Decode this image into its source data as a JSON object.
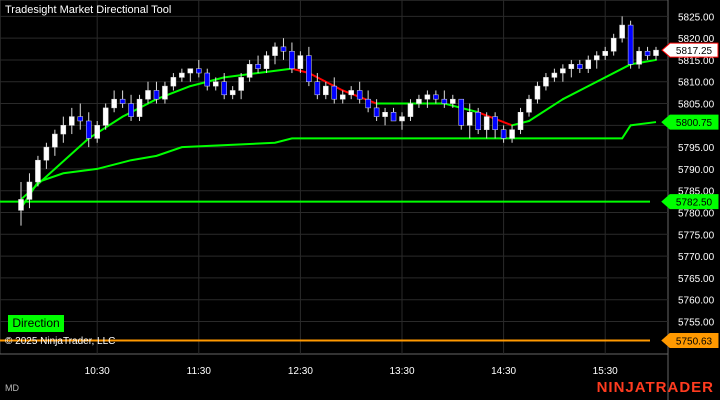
{
  "title": "Tradesight Market Directional Tool",
  "copyright": "© 2025 NinjaTrader, LLC",
  "workspace_tag": "MD",
  "brand": "NINJATRADER",
  "direction_label": "Direction",
  "colors": {
    "background": "#000000",
    "grid": "#2a2a2a",
    "bull_candle": "#ffffff",
    "bear_candle": "#0000ff",
    "trend_up": "#00ff00",
    "trend_down": "#ff0000",
    "support": "#00ff00",
    "lower_line": "#ff9900",
    "price_marker_bg": "#ffffff"
  },
  "chart_data": {
    "type": "candlestick",
    "y_range": [
      5748,
      5826
    ],
    "y_ticks": [
      "5825.00",
      "5820.00",
      "5815.00",
      "5810.00",
      "5805.00",
      "5800.00",
      "5795.00",
      "5790.00",
      "5785.00",
      "5780.00",
      "5775.00",
      "5770.00",
      "5765.00",
      "5760.00",
      "5755.00"
    ],
    "x_ticks": [
      "10:30",
      "11:30",
      "12:30",
      "13:30",
      "14:30",
      "15:30"
    ],
    "price_markers": [
      {
        "label": "5817.25",
        "value": 5817.25,
        "kind": "last"
      },
      {
        "label": "5800.75",
        "value": 5800.75,
        "kind": "green"
      },
      {
        "label": "5782.50",
        "value": 5782.5,
        "kind": "green"
      },
      {
        "label": "5750.63",
        "value": 5750.63,
        "kind": "orange"
      }
    ],
    "horizontal_levels": [
      {
        "name": "support",
        "value": 5782.5
      },
      {
        "name": "lower",
        "value": 5750.63
      }
    ],
    "candles": [
      [
        5780.5,
        5787,
        5777,
        5783
      ],
      [
        5783,
        5789,
        5781,
        5787
      ],
      [
        5787,
        5793,
        5786,
        5792
      ],
      [
        5792,
        5796,
        5790,
        5795
      ],
      [
        5795,
        5799,
        5793,
        5798
      ],
      [
        5798,
        5802,
        5796,
        5800
      ],
      [
        5800,
        5804,
        5798,
        5802
      ],
      [
        5802,
        5805,
        5799,
        5801
      ],
      [
        5801,
        5803,
        5795,
        5797
      ],
      [
        5797,
        5801,
        5796,
        5800
      ],
      [
        5800,
        5805,
        5799,
        5804
      ],
      [
        5804,
        5808,
        5803,
        5806
      ],
      [
        5806,
        5808,
        5804,
        5805
      ],
      [
        5805,
        5807,
        5801,
        5802
      ],
      [
        5802,
        5807,
        5801,
        5806
      ],
      [
        5806,
        5810,
        5805,
        5808
      ],
      [
        5808,
        5810,
        5805,
        5806
      ],
      [
        5806,
        5810,
        5805,
        5809
      ],
      [
        5809,
        5812,
        5808,
        5811
      ],
      [
        5811,
        5813,
        5810,
        5812
      ],
      [
        5812,
        5813,
        5810,
        5813
      ],
      [
        5813,
        5815,
        5811,
        5812
      ],
      [
        5812,
        5813,
        5808,
        5809
      ],
      [
        5809,
        5811,
        5808,
        5810
      ],
      [
        5810,
        5812,
        5806,
        5807
      ],
      [
        5807,
        5809,
        5806,
        5808
      ],
      [
        5808,
        5812,
        5806,
        5811
      ],
      [
        5811,
        5815,
        5810,
        5814
      ],
      [
        5814,
        5816,
        5812,
        5813
      ],
      [
        5813,
        5817,
        5812,
        5816
      ],
      [
        5816,
        5819,
        5814,
        5818
      ],
      [
        5818,
        5820,
        5815,
        5817
      ],
      [
        5817,
        5819,
        5812,
        5813
      ],
      [
        5813,
        5817,
        5812,
        5816
      ],
      [
        5816,
        5818,
        5809,
        5810
      ],
      [
        5810,
        5812,
        5806,
        5807
      ],
      [
        5807,
        5810,
        5806,
        5809
      ],
      [
        5809,
        5811,
        5805,
        5806
      ],
      [
        5806,
        5808,
        5805,
        5807
      ],
      [
        5807,
        5809,
        5806,
        5808
      ],
      [
        5808,
        5810,
        5805,
        5806
      ],
      [
        5806,
        5808,
        5803,
        5804
      ],
      [
        5804,
        5806,
        5801,
        5802
      ],
      [
        5802,
        5804,
        5800,
        5803
      ],
      [
        5803,
        5804,
        5801,
        5801
      ],
      [
        5801,
        5803,
        5799,
        5802
      ],
      [
        5802,
        5806,
        5801,
        5805
      ],
      [
        5805,
        5807,
        5804,
        5806
      ],
      [
        5806,
        5808,
        5804,
        5807
      ],
      [
        5807,
        5808,
        5805,
        5806
      ],
      [
        5806,
        5808,
        5804,
        5805
      ],
      [
        5805,
        5807,
        5804,
        5806
      ],
      [
        5806,
        5806,
        5799,
        5800
      ],
      [
        5800,
        5805,
        5797,
        5803
      ],
      [
        5803,
        5804,
        5798,
        5799
      ],
      [
        5799,
        5803,
        5797,
        5802
      ],
      [
        5802,
        5803,
        5797,
        5799
      ],
      [
        5799,
        5800,
        5796,
        5797
      ],
      [
        5797,
        5800,
        5796,
        5799
      ],
      [
        5799,
        5804,
        5798,
        5803
      ],
      [
        5803,
        5807,
        5802,
        5806
      ],
      [
        5806,
        5810,
        5805,
        5809
      ],
      [
        5809,
        5812,
        5808,
        5811
      ],
      [
        5811,
        5813,
        5810,
        5812
      ],
      [
        5812,
        5814,
        5810,
        5813
      ],
      [
        5813,
        5815,
        5811,
        5814
      ],
      [
        5814,
        5815,
        5812,
        5813
      ],
      [
        5813,
        5816,
        5812,
        5815
      ],
      [
        5815,
        5817,
        5813,
        5816
      ],
      [
        5816,
        5818,
        5815,
        5817
      ],
      [
        5817,
        5821,
        5816,
        5820
      ],
      [
        5820,
        5825,
        5819,
        5823
      ],
      [
        5823,
        5824,
        5813,
        5814
      ],
      [
        5814,
        5818,
        5813,
        5817
      ],
      [
        5817,
        5818,
        5815,
        5816
      ],
      [
        5816,
        5818,
        5815,
        5817.25
      ]
    ],
    "trend_line": [
      {
        "x": 0,
        "y": 5783
      },
      {
        "x": 4,
        "y": 5790
      },
      {
        "x": 8,
        "y": 5797
      },
      {
        "x": 12,
        "y": 5802
      },
      {
        "x": 16,
        "y": 5806
      },
      {
        "x": 20,
        "y": 5809
      },
      {
        "x": 24,
        "y": 5811
      },
      {
        "x": 28,
        "y": 5812
      },
      {
        "x": 32,
        "y": 5813
      },
      {
        "x": 34,
        "y": 5812
      },
      {
        "x": 38,
        "y": 5808
      },
      {
        "x": 42,
        "y": 5805
      },
      {
        "x": 46,
        "y": 5805
      },
      {
        "x": 50,
        "y": 5805
      },
      {
        "x": 54,
        "y": 5803
      },
      {
        "x": 58,
        "y": 5800
      },
      {
        "x": 60,
        "y": 5801
      },
      {
        "x": 64,
        "y": 5806
      },
      {
        "x": 68,
        "y": 5810
      },
      {
        "x": 72,
        "y": 5814
      },
      {
        "x": 75,
        "y": 5815
      }
    ],
    "trend_down_ranges": [
      [
        32,
        42
      ],
      [
        51,
        58
      ],
      [
        73,
        75
      ]
    ],
    "support_line": [
      {
        "x": 0,
        "y": 5781
      },
      {
        "x": 2,
        "y": 5787
      },
      {
        "x": 5,
        "y": 5789
      },
      {
        "x": 9,
        "y": 5790
      },
      {
        "x": 13,
        "y": 5792
      },
      {
        "x": 16,
        "y": 5793
      },
      {
        "x": 19,
        "y": 5795
      },
      {
        "x": 30,
        "y": 5796
      },
      {
        "x": 32,
        "y": 5797
      },
      {
        "x": 71,
        "y": 5797
      },
      {
        "x": 72,
        "y": 5800
      },
      {
        "x": 75,
        "y": 5800.75
      }
    ]
  }
}
